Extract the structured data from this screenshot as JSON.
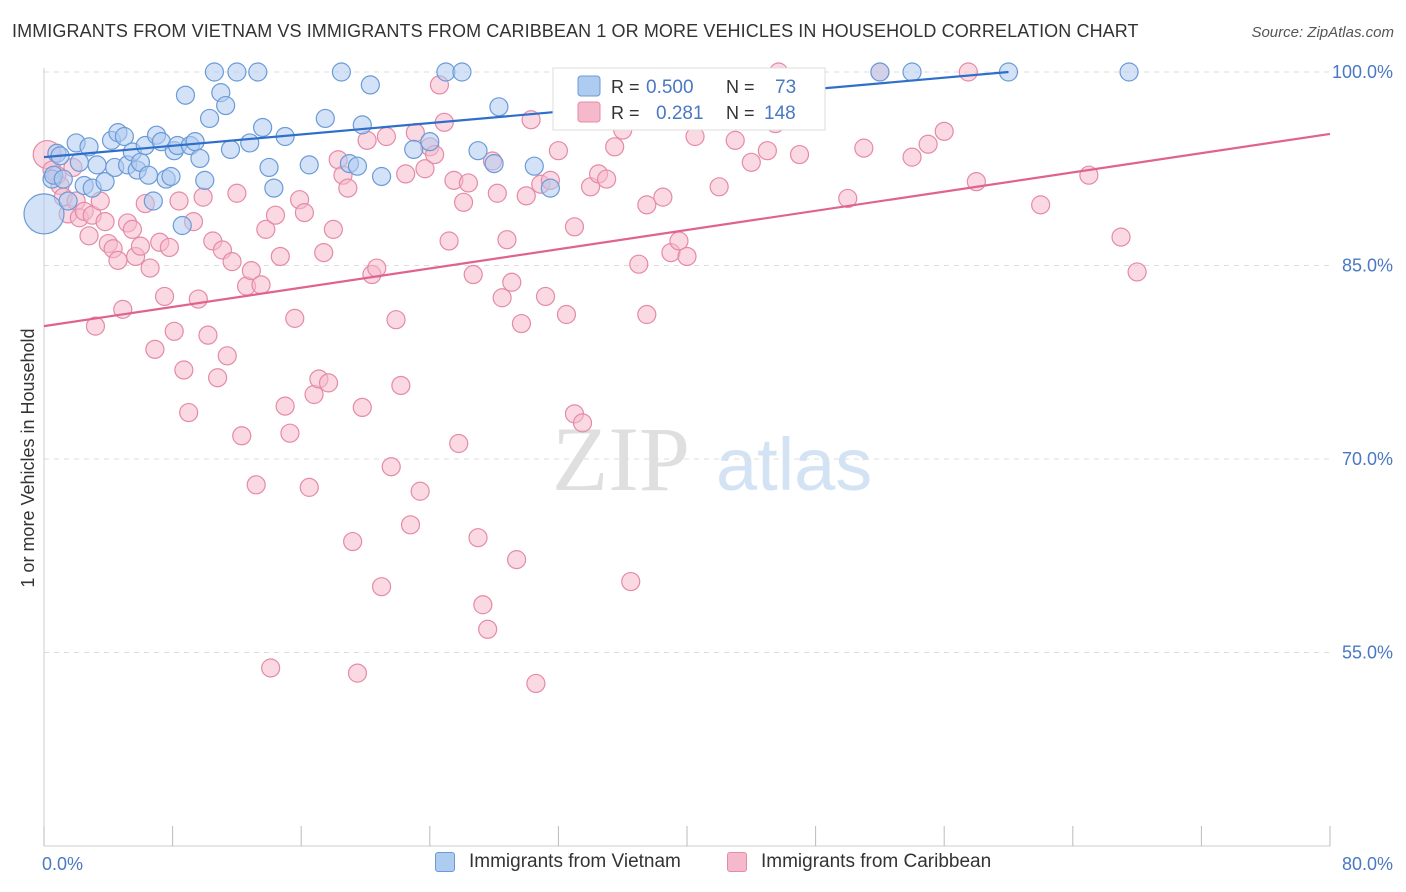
{
  "header": {
    "title": "IMMIGRANTS FROM VIETNAM VS IMMIGRANTS FROM CARIBBEAN 1 OR MORE VEHICLES IN HOUSEHOLD CORRELATION CHART",
    "source": "Source: ZipAtlas.com"
  },
  "watermark": {
    "zip": "ZIP",
    "atlas": "atlas"
  },
  "legend": {
    "r_label": "R =",
    "n_label": "N =",
    "vietnam": {
      "r": "0.500",
      "n": "73"
    },
    "caribbean": {
      "r": "0.281",
      "n": "148"
    }
  },
  "colors": {
    "vietnam_fill": "#aecbf0",
    "vietnam_stroke": "#6a9bd8",
    "vietnam_line": "#2f6fc9",
    "caribbean_fill": "#f5b9cc",
    "caribbean_stroke": "#e58aa8",
    "caribbean_line": "#e0628f",
    "tick_text": "#4a78c2",
    "grid": "#dddddd"
  },
  "chart_data": {
    "type": "scatter",
    "title": "IMMIGRANTS FROM VIETNAM VS IMMIGRANTS FROM CARIBBEAN 1 OR MORE VEHICLES IN HOUSEHOLD CORRELATION CHART",
    "xlabel": "",
    "ylabel": "1 or more Vehicles in Household",
    "xlim": [
      0,
      80
    ],
    "ylim": [
      40,
      100
    ],
    "x_tick_labels": [
      "0.0%",
      "80.0%"
    ],
    "y_ticks": [
      55,
      70,
      85,
      100
    ],
    "y_tick_labels": [
      "55.0%",
      "70.0%",
      "85.0%",
      "100.0%"
    ],
    "grid": true,
    "legend_position": "top-center",
    "series": [
      {
        "name": "Immigrants from Vietnam",
        "r": 0.5,
        "n": 73,
        "trend": {
          "x": [
            0,
            60
          ],
          "y": [
            93.4,
            100
          ]
        },
        "points": [
          [
            0.0,
            89.0
          ],
          [
            0.5,
            91.7
          ],
          [
            0.6,
            92.0
          ],
          [
            0.8,
            93.7
          ],
          [
            1.0,
            93.5
          ],
          [
            1.2,
            91.7
          ],
          [
            1.5,
            90.0
          ],
          [
            2.0,
            94.5
          ],
          [
            2.2,
            93.0
          ],
          [
            2.5,
            91.2
          ],
          [
            2.8,
            94.2
          ],
          [
            3.0,
            91.0
          ],
          [
            3.3,
            92.8
          ],
          [
            3.8,
            91.5
          ],
          [
            4.2,
            94.7
          ],
          [
            4.4,
            92.6
          ],
          [
            4.6,
            95.3
          ],
          [
            5.0,
            95.0
          ],
          [
            5.2,
            92.8
          ],
          [
            5.5,
            93.8
          ],
          [
            5.8,
            92.4
          ],
          [
            6.0,
            93.0
          ],
          [
            6.3,
            94.3
          ],
          [
            6.5,
            92.0
          ],
          [
            6.8,
            90.0
          ],
          [
            7.0,
            95.1
          ],
          [
            7.3,
            94.6
          ],
          [
            7.6,
            91.7
          ],
          [
            7.9,
            91.9
          ],
          [
            8.1,
            93.9
          ],
          [
            8.3,
            94.3
          ],
          [
            8.6,
            88.1
          ],
          [
            8.8,
            98.2
          ],
          [
            9.1,
            94.3
          ],
          [
            9.4,
            94.6
          ],
          [
            9.7,
            93.3
          ],
          [
            10.0,
            91.6
          ],
          [
            10.3,
            96.4
          ],
          [
            10.6,
            100.0
          ],
          [
            11.0,
            98.4
          ],
          [
            11.3,
            97.4
          ],
          [
            11.6,
            94.0
          ],
          [
            12.0,
            100.0
          ],
          [
            12.8,
            94.5
          ],
          [
            13.3,
            100.0
          ],
          [
            13.6,
            95.7
          ],
          [
            14.0,
            92.6
          ],
          [
            14.3,
            91.0
          ],
          [
            15.0,
            95.0
          ],
          [
            16.5,
            92.8
          ],
          [
            17.5,
            96.4
          ],
          [
            18.5,
            100.0
          ],
          [
            19.0,
            92.9
          ],
          [
            19.5,
            92.7
          ],
          [
            19.8,
            95.9
          ],
          [
            20.3,
            99.0
          ],
          [
            21.0,
            91.9
          ],
          [
            23.0,
            94.0
          ],
          [
            24.0,
            94.6
          ],
          [
            25.0,
            100.0
          ],
          [
            26.0,
            100.0
          ],
          [
            27.0,
            93.9
          ],
          [
            28.0,
            92.9
          ],
          [
            28.3,
            97.3
          ],
          [
            30.5,
            92.7
          ],
          [
            31.5,
            91.0
          ],
          [
            34.0,
            98.0
          ],
          [
            36.0,
            96.6
          ],
          [
            43.0,
            99.1
          ],
          [
            52.0,
            100.0
          ],
          [
            54.0,
            100.0
          ],
          [
            60.0,
            100.0
          ],
          [
            67.5,
            100.0
          ]
        ]
      },
      {
        "name": "Immigrants from Caribbean",
        "r": 0.281,
        "n": 148,
        "trend": {
          "x": [
            0,
            80
          ],
          "y": [
            80.3,
            95.2
          ]
        },
        "points": [
          [
            0.2,
            93.6
          ],
          [
            0.5,
            92.4
          ],
          [
            0.8,
            92.0
          ],
          [
            1.0,
            91.2
          ],
          [
            1.2,
            90.3
          ],
          [
            1.5,
            89.0
          ],
          [
            1.8,
            92.6
          ],
          [
            2.0,
            90.0
          ],
          [
            2.2,
            88.7
          ],
          [
            2.5,
            89.2
          ],
          [
            2.8,
            87.3
          ],
          [
            3.0,
            88.9
          ],
          [
            3.2,
            80.3
          ],
          [
            3.5,
            90.0
          ],
          [
            3.8,
            88.4
          ],
          [
            4.0,
            86.7
          ],
          [
            4.3,
            86.3
          ],
          [
            4.6,
            85.4
          ],
          [
            4.9,
            81.6
          ],
          [
            5.2,
            88.3
          ],
          [
            5.5,
            87.8
          ],
          [
            5.7,
            85.7
          ],
          [
            6.0,
            86.5
          ],
          [
            6.3,
            89.8
          ],
          [
            6.6,
            84.8
          ],
          [
            6.9,
            78.5
          ],
          [
            7.2,
            86.8
          ],
          [
            7.5,
            82.6
          ],
          [
            7.8,
            86.4
          ],
          [
            8.1,
            79.9
          ],
          [
            8.4,
            90.0
          ],
          [
            8.7,
            76.9
          ],
          [
            9.0,
            73.6
          ],
          [
            9.3,
            88.4
          ],
          [
            9.6,
            82.4
          ],
          [
            9.9,
            90.3
          ],
          [
            10.2,
            79.6
          ],
          [
            10.5,
            86.9
          ],
          [
            10.8,
            76.3
          ],
          [
            11.1,
            86.2
          ],
          [
            11.4,
            78.0
          ],
          [
            11.7,
            85.3
          ],
          [
            12.0,
            90.6
          ],
          [
            12.3,
            71.8
          ],
          [
            12.6,
            83.4
          ],
          [
            12.9,
            84.6
          ],
          [
            13.2,
            68.0
          ],
          [
            13.5,
            83.5
          ],
          [
            13.8,
            87.8
          ],
          [
            14.1,
            53.8
          ],
          [
            14.4,
            88.9
          ],
          [
            14.7,
            85.7
          ],
          [
            15.0,
            74.1
          ],
          [
            15.3,
            72.0
          ],
          [
            15.6,
            80.9
          ],
          [
            15.9,
            90.1
          ],
          [
            16.2,
            89.1
          ],
          [
            16.5,
            67.8
          ],
          [
            16.8,
            75.0
          ],
          [
            17.1,
            76.2
          ],
          [
            17.4,
            86.0
          ],
          [
            17.7,
            75.9
          ],
          [
            18.0,
            87.8
          ],
          [
            18.3,
            93.2
          ],
          [
            18.6,
            92.0
          ],
          [
            18.9,
            91.0
          ],
          [
            19.2,
            63.6
          ],
          [
            19.5,
            53.4
          ],
          [
            19.8,
            74.0
          ],
          [
            20.1,
            94.7
          ],
          [
            20.4,
            84.3
          ],
          [
            20.7,
            84.8
          ],
          [
            21.0,
            60.1
          ],
          [
            21.3,
            95.0
          ],
          [
            21.6,
            69.4
          ],
          [
            21.9,
            80.8
          ],
          [
            22.2,
            75.7
          ],
          [
            22.5,
            92.1
          ],
          [
            22.8,
            64.9
          ],
          [
            23.1,
            95.3
          ],
          [
            23.4,
            67.5
          ],
          [
            23.7,
            92.5
          ],
          [
            24.0,
            94.2
          ],
          [
            24.3,
            93.6
          ],
          [
            24.6,
            99.0
          ],
          [
            24.9,
            96.1
          ],
          [
            25.2,
            86.9
          ],
          [
            25.5,
            91.6
          ],
          [
            25.8,
            71.2
          ],
          [
            26.1,
            89.9
          ],
          [
            26.4,
            91.4
          ],
          [
            26.7,
            84.3
          ],
          [
            27.0,
            63.9
          ],
          [
            27.3,
            58.7
          ],
          [
            27.6,
            56.8
          ],
          [
            27.9,
            93.1
          ],
          [
            28.2,
            90.6
          ],
          [
            28.5,
            82.5
          ],
          [
            28.8,
            87.0
          ],
          [
            29.1,
            83.7
          ],
          [
            29.4,
            62.2
          ],
          [
            29.7,
            80.5
          ],
          [
            30.0,
            90.4
          ],
          [
            30.3,
            96.3
          ],
          [
            30.6,
            52.6
          ],
          [
            30.9,
            91.3
          ],
          [
            31.2,
            82.6
          ],
          [
            31.5,
            91.6
          ],
          [
            32.0,
            93.9
          ],
          [
            32.5,
            81.2
          ],
          [
            33.0,
            73.5
          ],
          [
            33.5,
            72.8
          ],
          [
            34.0,
            91.1
          ],
          [
            34.5,
            92.1
          ],
          [
            35.0,
            91.7
          ],
          [
            35.5,
            94.2
          ],
          [
            36.0,
            95.5
          ],
          [
            36.5,
            60.5
          ],
          [
            37.0,
            85.1
          ],
          [
            37.5,
            89.7
          ],
          [
            38.0,
            98.0
          ],
          [
            38.5,
            90.3
          ],
          [
            39.0,
            86.0
          ],
          [
            39.5,
            86.9
          ],
          [
            40.0,
            85.7
          ],
          [
            42.0,
            91.1
          ],
          [
            43.0,
            94.7
          ],
          [
            44.0,
            93.0
          ],
          [
            45.0,
            93.9
          ],
          [
            45.5,
            96.0
          ],
          [
            47.0,
            93.6
          ],
          [
            48.0,
            96.6
          ],
          [
            50.0,
            90.2
          ],
          [
            51.0,
            94.1
          ],
          [
            52.0,
            100.0
          ],
          [
            54.0,
            93.4
          ],
          [
            55.0,
            94.4
          ],
          [
            56.0,
            95.4
          ],
          [
            58.0,
            91.5
          ],
          [
            62.0,
            89.7
          ],
          [
            65.0,
            92.0
          ],
          [
            67.0,
            87.2
          ],
          [
            68.0,
            84.5
          ],
          [
            57.5,
            100.0
          ],
          [
            37.5,
            81.2
          ],
          [
            33.0,
            88.0
          ],
          [
            40.5,
            95.0
          ],
          [
            45.7,
            100.0
          ]
        ]
      }
    ]
  }
}
